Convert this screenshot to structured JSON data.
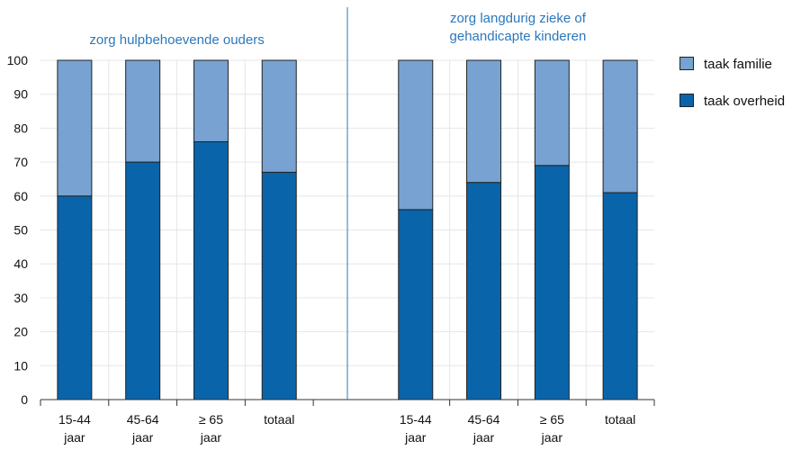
{
  "chart_data": {
    "type": "bar",
    "stacked": true,
    "ylim": [
      0,
      100
    ],
    "yticks": [
      0,
      10,
      20,
      30,
      40,
      50,
      60,
      70,
      80,
      90,
      100
    ],
    "grid": true,
    "legend_position": "right",
    "colors": {
      "taak overheid": "#0a64a9",
      "taak familie": "#77a2d1",
      "divider": "#2a78bd",
      "title": "#2a78bd"
    },
    "groups": [
      {
        "title_lines": [
          "zorg hulpbehoevende ouders"
        ],
        "categories": [
          [
            "15-44",
            "jaar"
          ],
          [
            "45-64",
            "jaar"
          ],
          [
            "≥ 65",
            "jaar"
          ],
          [
            "totaal"
          ]
        ]
      },
      {
        "title_lines": [
          "zorg langdurig zieke of",
          "gehandicapte kinderen"
        ],
        "categories": [
          [
            "15-44",
            "jaar"
          ],
          [
            "45-64",
            "jaar"
          ],
          [
            "≥ 65",
            "jaar"
          ],
          [
            "totaal"
          ]
        ]
      }
    ],
    "series": [
      {
        "name": "taak overheid",
        "values": [
          60,
          70,
          76,
          67,
          56,
          64,
          69,
          61
        ]
      },
      {
        "name": "taak familie",
        "values": [
          40,
          30,
          24,
          33,
          44,
          36,
          31,
          39
        ]
      }
    ],
    "legend": [
      "taak familie",
      "taak overheid"
    ]
  }
}
